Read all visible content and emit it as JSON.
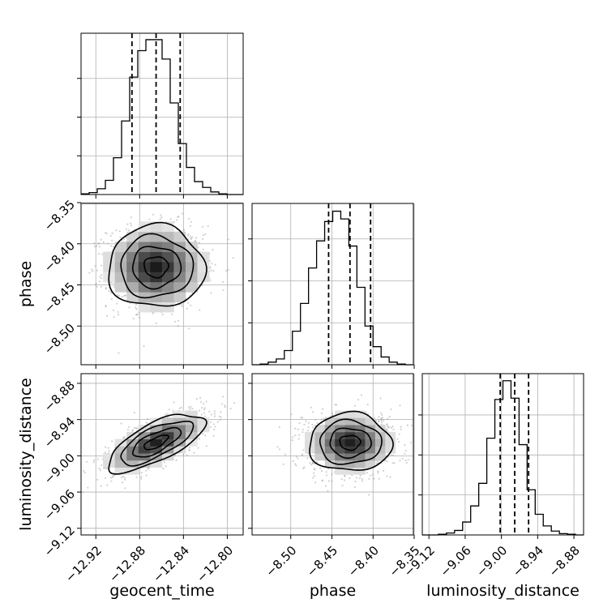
{
  "chart_data": {
    "type": "corner",
    "parameters": [
      "geocent_time",
      "phase",
      "luminosity_distance"
    ],
    "quantile_lines": [
      0.16,
      0.5,
      0.84
    ],
    "grid": true,
    "colors": {
      "line": "#000000",
      "grid": "#b0b0b0",
      "points": "#9a9a9a"
    },
    "axes": {
      "geocent_time": {
        "label": "geocent_time",
        "range": [
          -12.9335,
          -12.7855
        ],
        "ticks": [
          -12.92,
          -12.88,
          -12.84,
          -12.8
        ],
        "tick_labels": [
          "−12.92",
          "−12.88",
          "−12.84",
          "−12.80"
        ],
        "mean": -12.865,
        "std": 0.022,
        "quantiles": [
          -12.887,
          -12.865,
          -12.843
        ]
      },
      "phase": {
        "label": "phase",
        "range": [
          -8.547,
          -8.351
        ],
        "ticks": [
          -8.5,
          -8.45,
          -8.4,
          -8.35
        ],
        "tick_labels": [
          "−8.50",
          "−8.45",
          "−8.40",
          "−8.35"
        ],
        "mean": -8.428,
        "std": 0.025,
        "quantiles": [
          -8.454,
          -8.428,
          -8.403
        ]
      },
      "luminosity_distance": {
        "label": "luminosity_distance",
        "range": [
          -9.131,
          -8.864
        ],
        "ticks": [
          -9.12,
          -9.06,
          -9.0,
          -8.94,
          -8.88
        ],
        "tick_labels": [
          "−9.12",
          "−9.06",
          "−9.00",
          "−8.94",
          "−8.88"
        ],
        "mean": -8.978,
        "std": 0.024,
        "quantiles": [
          -9.002,
          -8.978,
          -8.955
        ]
      }
    },
    "correlations": {
      "geocent_time|phase": 0.0,
      "geocent_time|luminosity_distance": 0.7,
      "phase|luminosity_distance": 0.0
    },
    "histograms": {
      "geocent_time": {
        "bin_edges": [
          -12.9335,
          -12.9261,
          -12.9187,
          -12.9113,
          -12.9039,
          -12.8965,
          -12.8891,
          -12.8817,
          -12.8743,
          -12.8669,
          -12.8595,
          -12.8521,
          -12.8447,
          -12.8373,
          -12.8299,
          -12.8225,
          -12.8151,
          -12.8077,
          -12.8003,
          -12.7929,
          -12.7855
        ],
        "counts": [
          1,
          3,
          9,
          22,
          57,
          114,
          182,
          223,
          240,
          240,
          210,
          142,
          79,
          42,
          20,
          11,
          4,
          1,
          0,
          0
        ],
        "ymax": 250,
        "y_ticks": [
          60,
          120,
          180
        ]
      },
      "phase": {
        "bin_edges": [
          -8.547,
          -8.5372,
          -8.5274,
          -8.5176,
          -8.5078,
          -8.498,
          -8.4882,
          -8.4784,
          -8.4686,
          -8.4588,
          -8.449,
          -8.4392,
          -8.4294,
          -8.4196,
          -8.4098,
          -8.4,
          -8.3902,
          -8.3804,
          -8.3706,
          -8.3608,
          -8.351
        ],
        "counts": [
          0,
          1,
          4,
          9,
          22,
          52,
          95,
          150,
          192,
          222,
          238,
          226,
          184,
          120,
          60,
          28,
          12,
          4,
          1,
          0
        ],
        "ymax": 250,
        "y_ticks": [
          65,
          130,
          195
        ]
      },
      "luminosity_distance": {
        "bin_edges": [
          -9.131,
          -9.11765,
          -9.1043,
          -9.09095,
          -9.0776,
          -9.06425,
          -9.0509,
          -9.03755,
          -9.0242,
          -9.01085,
          -8.9975,
          -8.98415,
          -8.9708,
          -8.95745,
          -8.9441,
          -8.93075,
          -8.9174,
          -8.90405,
          -8.8907,
          -8.87735,
          -8.864
        ],
        "counts": [
          0,
          0,
          1,
          3,
          7,
          20,
          45,
          80,
          150,
          210,
          239,
          212,
          140,
          70,
          32,
          14,
          6,
          2,
          1,
          0
        ],
        "ymax": 250,
        "y_ticks": [
          62,
          124,
          186
        ]
      }
    }
  }
}
